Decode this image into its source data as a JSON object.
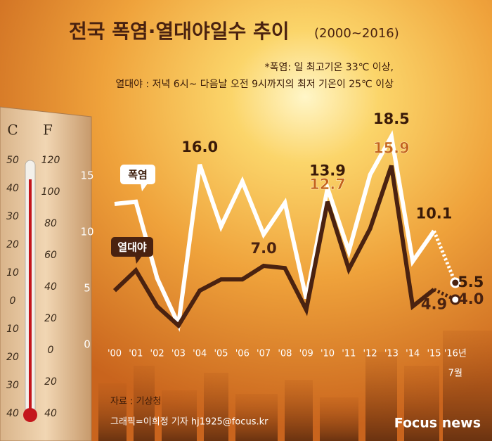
{
  "chart_data": {
    "type": "line",
    "title": "전국 폭염·열대야일수 추이",
    "subtitle": "(2000~2016)",
    "notes": [
      "*폭염: 일 최고기온 33℃ 이상,",
      "열대야 : 저녁 6시~ 다음날 오전 9시까지의 최저 기온이 25℃ 이상"
    ],
    "categories": [
      "'00",
      "'01",
      "'02",
      "'03",
      "'04",
      "'05",
      "'06",
      "'07",
      "'08",
      "'09",
      "'10",
      "'11",
      "'12",
      "'13",
      "'14",
      "'15",
      "'16년"
    ],
    "x_note": "7월",
    "series": [
      {
        "name": "폭염",
        "color": "#ffffff",
        "values": [
          12.5,
          12.7,
          5.9,
          1.8,
          16.0,
          10.5,
          14.5,
          9.8,
          12.6,
          4.1,
          13.9,
          8.3,
          15.1,
          18.5,
          7.4,
          10.1,
          5.5
        ],
        "value_labels": [
          null,
          null,
          null,
          null,
          "16.0",
          null,
          null,
          null,
          null,
          null,
          "13.9",
          null,
          null,
          "18.5",
          null,
          "10.1",
          "5.5"
        ]
      },
      {
        "name": "열대야",
        "color": "#4a2210",
        "values": [
          4.8,
          6.6,
          3.4,
          1.7,
          4.8,
          5.8,
          5.8,
          7.0,
          6.8,
          3.1,
          12.7,
          6.7,
          10.3,
          15.9,
          3.4,
          4.9,
          4.0
        ],
        "value_labels": [
          null,
          null,
          null,
          null,
          null,
          null,
          null,
          "7.0",
          null,
          null,
          "12.7",
          null,
          null,
          "15.9",
          null,
          "4.9",
          "4.0"
        ]
      }
    ],
    "ylim": [
      0,
      20
    ],
    "yticks": [
      0,
      5,
      10,
      15
    ],
    "source": "자료 : 기상청",
    "credit": "그래픽=이희정 기자 hj1925@focus.kr",
    "logo": "Focus news",
    "thermometer": {
      "c": "C",
      "f": "F",
      "celsius": [
        "50",
        "40",
        "30",
        "20",
        "10",
        "0",
        "10",
        "20",
        "30",
        "40"
      ],
      "fahrenheit": [
        "120",
        "100",
        "80",
        "60",
        "40",
        "20",
        "0",
        "20",
        "40"
      ]
    }
  }
}
